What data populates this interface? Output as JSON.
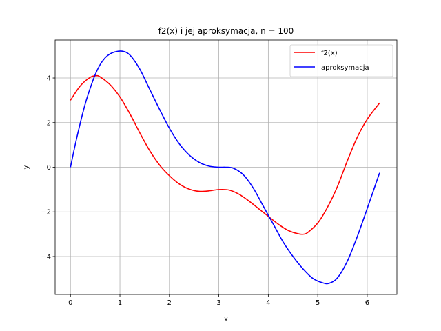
{
  "chart_data": {
    "type": "line",
    "title": "f2(x) i jej aproksymacja, n = 100",
    "xlabel": "x",
    "ylabel": "y",
    "xlim": [
      -0.31,
      6.6
    ],
    "ylim": [
      -5.7,
      5.7
    ],
    "xticks": [
      0,
      1,
      2,
      3,
      4,
      5,
      6
    ],
    "yticks": [
      -4,
      -2,
      0,
      2,
      4
    ],
    "xtick_labels": [
      "0",
      "1",
      "2",
      "3",
      "4",
      "5",
      "6"
    ],
    "ytick_labels": [
      "−4",
      "−2",
      "0",
      "2",
      "4"
    ],
    "grid": true,
    "legend_position": "top-right",
    "series": [
      {
        "name": "f2(x)",
        "color": "#ff0000",
        "x": [
          0,
          0.2,
          0.4,
          0.52,
          0.6,
          0.8,
          1.0,
          1.2,
          1.4,
          1.6,
          1.8,
          2.0,
          2.2,
          2.4,
          2.6,
          2.8,
          3.0,
          3.2,
          3.4,
          3.6,
          3.8,
          4.0,
          4.2,
          4.4,
          4.6,
          4.71,
          4.8,
          5.0,
          5.2,
          5.4,
          5.6,
          5.8,
          6.0,
          6.25
        ],
        "y": [
          3.0,
          3.65,
          4.03,
          4.1,
          4.05,
          3.7,
          3.15,
          2.4,
          1.55,
          0.75,
          0.1,
          -0.38,
          -0.75,
          -0.98,
          -1.08,
          -1.06,
          -1.0,
          -1.02,
          -1.2,
          -1.5,
          -1.85,
          -2.2,
          -2.55,
          -2.83,
          -2.98,
          -3.0,
          -2.92,
          -2.5,
          -1.78,
          -0.85,
          0.3,
          1.35,
          2.15,
          2.88
        ]
      },
      {
        "name": "aproksymacja",
        "color": "#0000ff",
        "x": [
          0,
          0.1,
          0.2,
          0.3,
          0.4,
          0.5,
          0.6,
          0.7,
          0.8,
          0.9,
          1.05,
          1.2,
          1.4,
          1.6,
          1.8,
          2.0,
          2.2,
          2.4,
          2.6,
          2.8,
          3.0,
          3.14,
          3.3,
          3.5,
          3.7,
          3.9,
          4.1,
          4.3,
          4.5,
          4.7,
          4.9,
          5.1,
          5.23,
          5.4,
          5.6,
          5.8,
          6.0,
          6.25
        ],
        "y": [
          0.0,
          1.05,
          2.0,
          2.85,
          3.55,
          4.15,
          4.6,
          4.9,
          5.08,
          5.17,
          5.2,
          5.03,
          4.4,
          3.5,
          2.6,
          1.75,
          1.05,
          0.55,
          0.22,
          0.05,
          0.0,
          0.0,
          -0.05,
          -0.35,
          -0.95,
          -1.75,
          -2.55,
          -3.35,
          -4.0,
          -4.55,
          -4.98,
          -5.18,
          -5.2,
          -4.95,
          -4.2,
          -3.1,
          -1.85,
          -0.25
        ]
      }
    ]
  }
}
